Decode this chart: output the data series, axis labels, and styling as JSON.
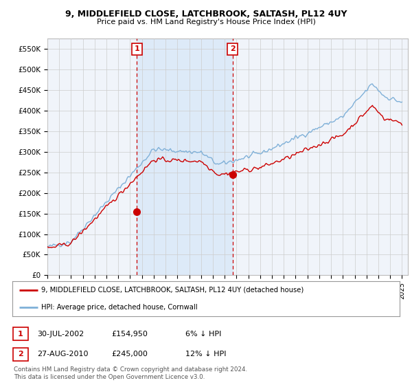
{
  "title": "9, MIDDLEFIELD CLOSE, LATCHBROOK, SALTASH, PL12 4UY",
  "subtitle": "Price paid vs. HM Land Registry's House Price Index (HPI)",
  "ylim": [
    0,
    575000
  ],
  "yticks": [
    0,
    50000,
    100000,
    150000,
    200000,
    250000,
    300000,
    350000,
    400000,
    450000,
    500000,
    550000
  ],
  "ytick_labels": [
    "£0",
    "£50K",
    "£100K",
    "£150K",
    "£200K",
    "£250K",
    "£300K",
    "£350K",
    "£400K",
    "£450K",
    "£500K",
    "£550K"
  ],
  "xlim_start": 1995.0,
  "xlim_end": 2025.5,
  "sale1_x": 2002.58,
  "sale1_y": 154950,
  "sale1_label": "1",
  "sale1_date": "30-JUL-2002",
  "sale1_price": "£154,950",
  "sale1_hpi": "6% ↓ HPI",
  "sale2_x": 2010.66,
  "sale2_y": 245000,
  "sale2_label": "2",
  "sale2_date": "27-AUG-2010",
  "sale2_price": "£245,000",
  "sale2_hpi": "12% ↓ HPI",
  "legend_line1": "9, MIDDLEFIELD CLOSE, LATCHBROOK, SALTASH, PL12 4UY (detached house)",
  "legend_line2": "HPI: Average price, detached house, Cornwall",
  "footer": "Contains HM Land Registry data © Crown copyright and database right 2024.\nThis data is licensed under the Open Government Licence v3.0.",
  "sale_color": "#cc0000",
  "hpi_color": "#7fb0d8",
  "shading_color": "#ddeaf8",
  "background_color": "#f0f4fa",
  "plot_bg": "#ffffff",
  "vline_color": "#cc0000",
  "grid_color": "#cccccc"
}
